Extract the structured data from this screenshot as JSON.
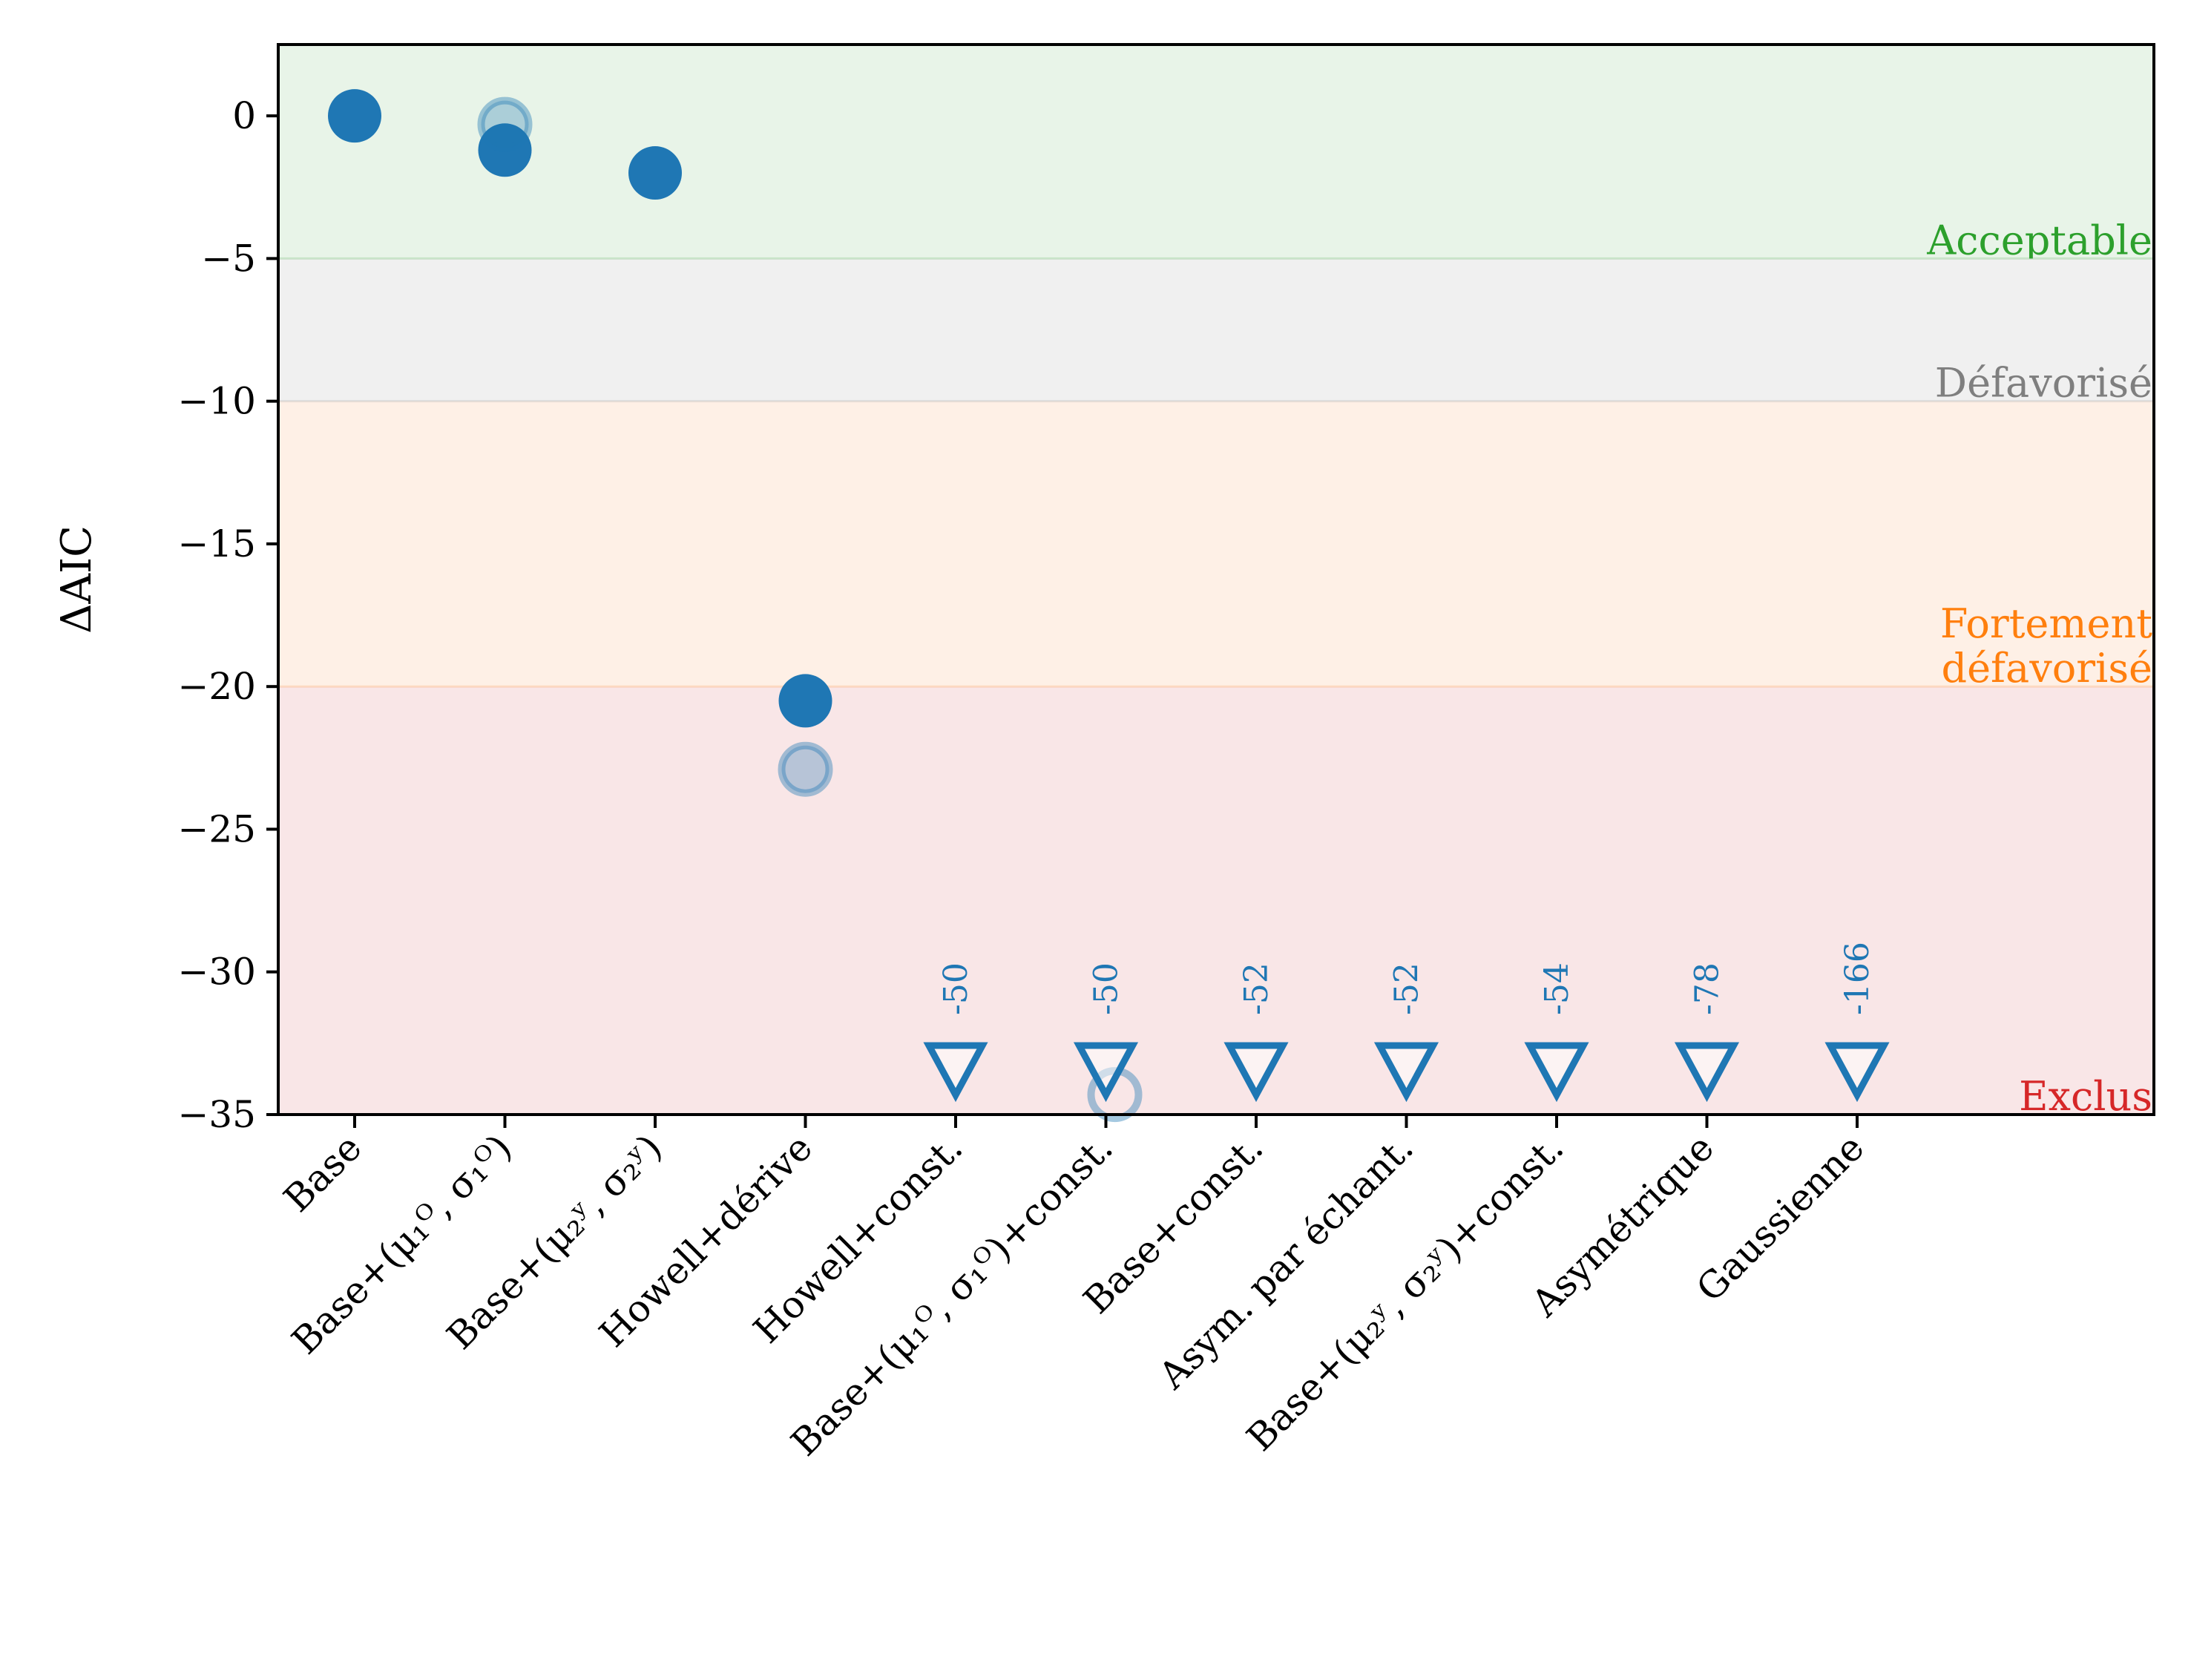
{
  "chart_data": {
    "type": "scatter",
    "ylabel": "ΔAIC",
    "xlabel": "",
    "title": "",
    "ylim": [
      -35,
      2.5
    ],
    "yticks": [
      0,
      -5,
      -10,
      -15,
      -20,
      -25,
      -30,
      -35
    ],
    "ytick_labels": [
      "0",
      "−5",
      "−10",
      "−15",
      "−20",
      "−25",
      "−30",
      "−35"
    ],
    "categories": [
      "Base",
      "Base+(μ₁ᴼ, σ₁ᴼ)",
      "Base+(μ₂ʸ, σ₂ʸ)",
      "Howell+dérive",
      "Howell+const.",
      "Base+(μ₁ᴼ, σ₁ᴼ)+const.",
      "Base+const.",
      "Asym. par échant.",
      "Base+(μ₂ʸ, σ₂ʸ)+const.",
      "Asymétrique",
      "Gaussienne"
    ],
    "zones": [
      {
        "label": "Acceptable",
        "from": 0,
        "to": -5,
        "color": "#2ca02c",
        "fill": "#e8f4e8"
      },
      {
        "label": "Défavorisé",
        "from": -5,
        "to": -10,
        "color": "#7f7f7f",
        "fill": "#f0f0f0"
      },
      {
        "label": "Fortement\ndéfavorisé",
        "from": -10,
        "to": -20,
        "color": "#ff7f0e",
        "fill": "#fef0e6"
      },
      {
        "label": "Exclus",
        "from": -20,
        "to": -35,
        "color": "#d62728",
        "fill": "#f9e6e7"
      }
    ],
    "series": [
      {
        "marker": "filled-circle",
        "color": "#1f77b4",
        "points": [
          {
            "category": 0,
            "y": 0
          },
          {
            "category": 1,
            "y": -1.2
          },
          {
            "category": 2,
            "y": -2.0
          },
          {
            "category": 3,
            "y": -20.5
          }
        ]
      },
      {
        "marker": "faded-circle",
        "color": "#1f77b4",
        "points": [
          {
            "category": 1,
            "y": -0.3
          },
          {
            "category": 3,
            "y": -22.9
          },
          {
            "category": 5,
            "y": -34.3
          }
        ]
      },
      {
        "marker": "down-triangle-off-scale",
        "color": "#1f77b4",
        "points": [
          {
            "category": 4,
            "y": -50,
            "label": "-50"
          },
          {
            "category": 5,
            "y": -50,
            "label": "-50"
          },
          {
            "category": 6,
            "y": -52,
            "label": "-52"
          },
          {
            "category": 7,
            "y": -52,
            "label": "-52"
          },
          {
            "category": 8,
            "y": -54,
            "label": "-54"
          },
          {
            "category": 9,
            "y": -78,
            "label": "-78"
          },
          {
            "category": 10,
            "y": -166,
            "label": "-166"
          }
        ]
      }
    ]
  }
}
